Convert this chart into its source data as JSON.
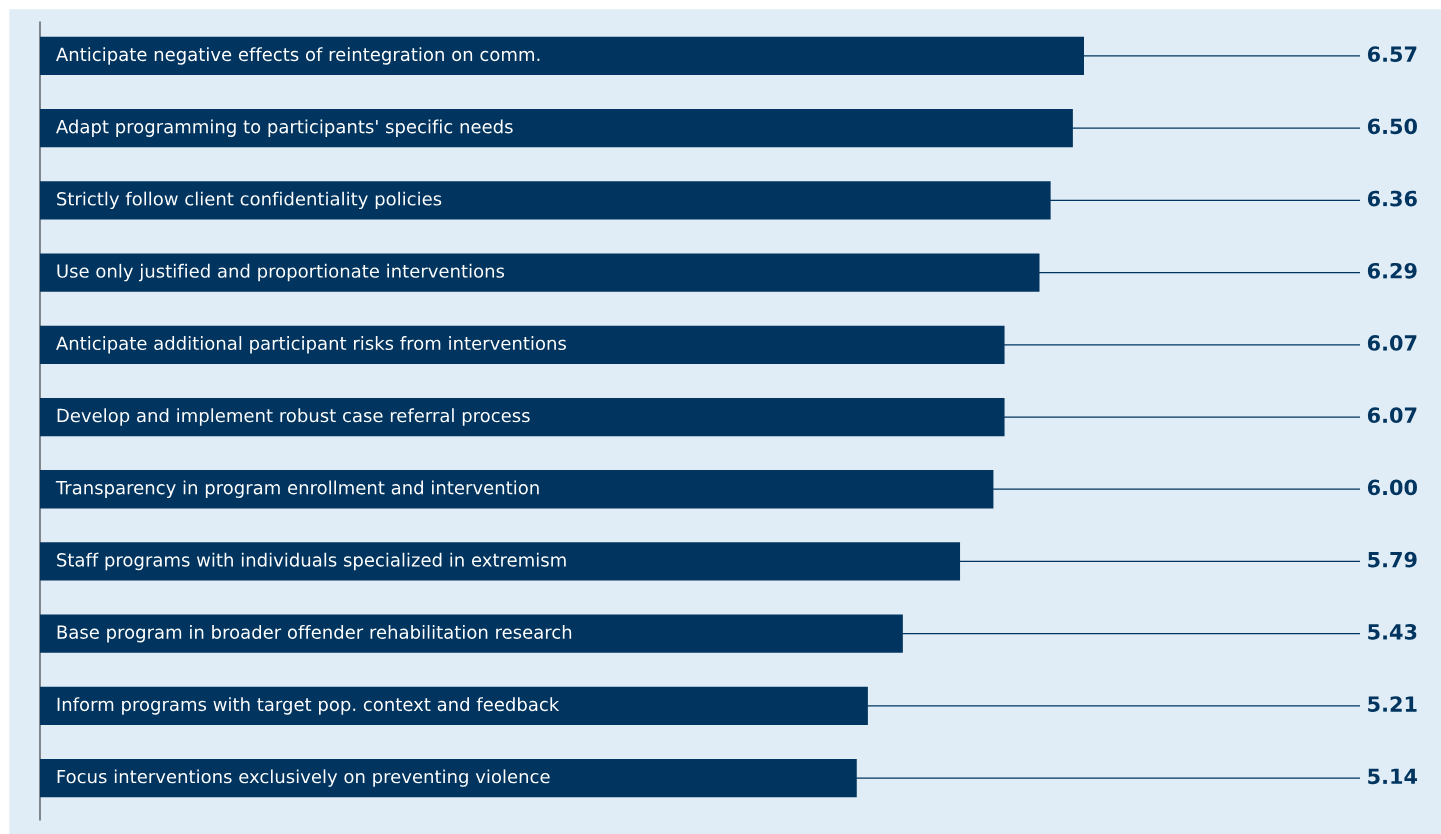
{
  "chart_data": {
    "type": "bar",
    "orientation": "horizontal",
    "categories": [
      "Anticipate negative effects of reintegration on comm.",
      "Adapt programming to participants' specific needs",
      "Strictly follow client confidentiality policies",
      "Use only justified and proportionate interventions",
      "Anticipate additional participant risks from interventions",
      "Develop and implement robust case referral process",
      "Transparency in program enrollment and intervention",
      "Staff programs with individuals specialized in extremism",
      "Base program in broader offender rehabilitation research",
      "Inform programs with target pop. context and feedback",
      "Focus interventions exclusively on preventing violence"
    ],
    "values": [
      6.57,
      6.5,
      6.36,
      6.29,
      6.07,
      6.07,
      6.0,
      5.79,
      5.43,
      5.21,
      5.14
    ],
    "value_labels": [
      "6.57",
      "6.50",
      "6.36",
      "6.29",
      "6.07",
      "6.07",
      "6.00",
      "5.79",
      "5.43",
      "5.21",
      "5.14"
    ],
    "color": "#01355f"
  }
}
